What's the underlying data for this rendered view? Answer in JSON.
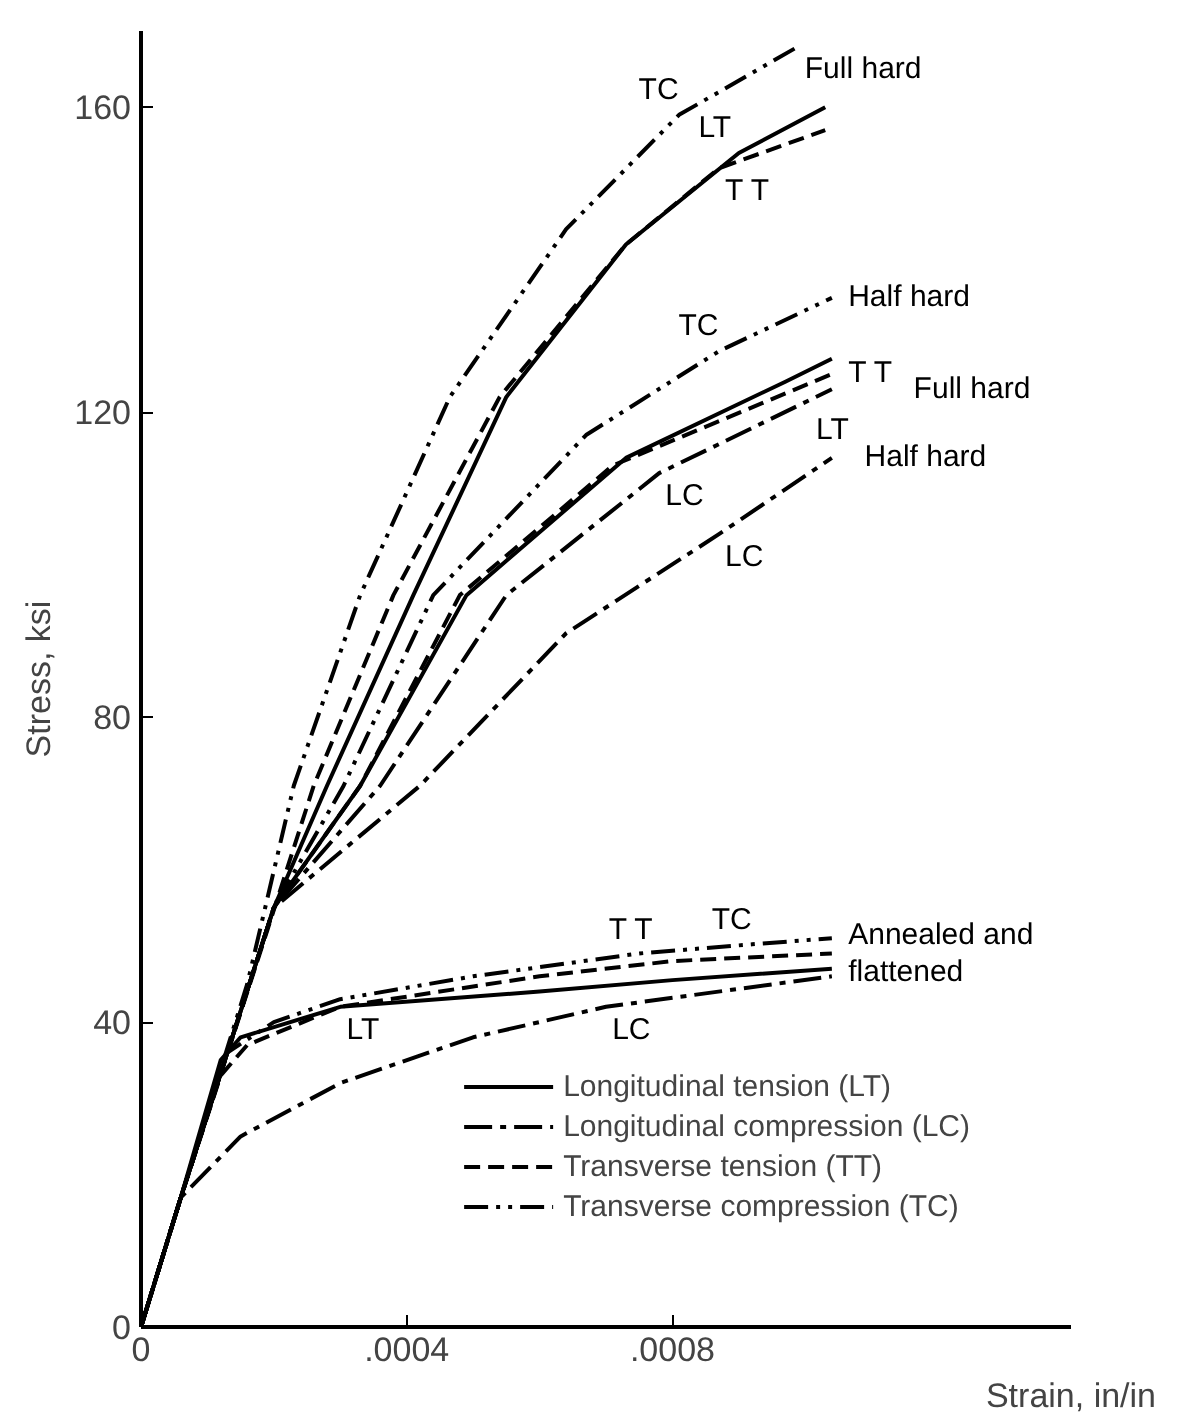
{
  "chart_data": {
    "type": "line",
    "xlabel": "Strain, in/in",
    "ylabel": "Stress, ksi",
    "xlim": [
      0,
      0.0014
    ],
    "ylim": [
      0,
      170
    ],
    "xticks": [
      0,
      {
        "value": 0.0004,
        "label": ".0004"
      },
      {
        "value": 0.0008,
        "label": ".0008"
      }
    ],
    "yticks": [
      0,
      40,
      80,
      120,
      160
    ],
    "grid": false,
    "legend": "bottom right",
    "series": [
      {
        "name": "Longitudinal tension (LT)",
        "line_style": "solid",
        "color": "#000000",
        "x": [
          0,
          6e-05,
          0.0002,
          0.00028,
          0.00041,
          0.00055,
          0.00073,
          0.0009,
          0.00103
        ],
        "values": [
          0,
          17,
          55,
          71,
          96,
          122,
          142,
          154,
          160
        ]
      },
      {
        "name": "Longitudinal compression (LC)",
        "line_style": "dashdot",
        "color": "#000000",
        "x": [
          0,
          6e-05,
          0.0002,
          0.00036,
          0.00055,
          0.00078,
          0.00104
        ],
        "values": [
          0,
          17,
          55,
          71,
          96,
          112,
          123
        ]
      },
      {
        "name": "Transverse tension (TT)",
        "line_style": "dashed",
        "color": "#000000",
        "x": [
          0,
          6e-05,
          0.00019,
          0.00026,
          0.00038,
          0.00054,
          0.00073,
          0.00087,
          0.00103
        ],
        "values": [
          0,
          17,
          52,
          71,
          96,
          122,
          142,
          152,
          157
        ]
      },
      {
        "name": "Transverse compression (TC)",
        "line_style": "dashdotdot",
        "color": "#000000",
        "x": [
          0,
          6e-05,
          0.00016,
          0.00023,
          0.00033,
          0.000465,
          0.00064,
          0.00081,
          0.00099
        ],
        "values": [
          0,
          17,
          45,
          71,
          96,
          122,
          144,
          159,
          168
        ]
      },
      {
        "line_style": "solid",
        "color": "#000000",
        "x": [
          0,
          6e-05,
          0.0002,
          0.00033,
          0.00049,
          0.00073,
          0.00097,
          0.00104
        ],
        "values": [
          0,
          17,
          55,
          71,
          96,
          114,
          124,
          127
        ]
      },
      {
        "line_style": "dashdot",
        "color": "#000000",
        "x": [
          0,
          6e-05,
          0.0002,
          0.00042,
          0.00064,
          0.00087,
          0.00104
        ],
        "values": [
          0,
          17,
          55,
          71,
          91,
          104,
          114
        ]
      },
      {
        "line_style": "dashed",
        "color": "#000000",
        "x": [
          0,
          6e-05,
          0.0002,
          0.00033,
          0.00048,
          0.00071,
          0.00104
        ],
        "values": [
          0,
          17,
          55,
          71,
          96,
          113,
          125
        ]
      },
      {
        "line_style": "dashdotdot",
        "color": "#000000",
        "x": [
          0,
          6e-05,
          0.0002,
          0.000305,
          0.00044,
          0.00067,
          0.00087,
          0.00104
        ],
        "values": [
          0,
          17,
          55,
          71,
          96,
          117,
          128,
          135
        ]
      },
      {
        "line_style": "solid",
        "color": "#000000",
        "x": [
          0,
          6e-05,
          0.00012,
          0.00015,
          0.0003,
          0.0006,
          0.0008,
          0.00104
        ],
        "values": [
          0,
          17,
          35,
          38,
          42,
          44,
          45.5,
          47
        ]
      },
      {
        "line_style": "dashdot",
        "color": "#000000",
        "x": [
          0,
          6e-05,
          0.00015,
          0.0003,
          0.0005,
          0.0007,
          0.00104
        ],
        "values": [
          0,
          17,
          25,
          32,
          38,
          42,
          46
        ]
      },
      {
        "line_style": "dashed",
        "color": "#000000",
        "x": [
          0,
          6e-05,
          0.00012,
          0.00016,
          0.0003,
          0.0006,
          0.0008,
          0.00104
        ],
        "values": [
          0,
          17,
          33,
          37,
          42,
          46,
          48,
          49
        ]
      },
      {
        "line_style": "dashdotdot",
        "color": "#000000",
        "x": [
          0,
          6e-05,
          0.00013,
          0.0002,
          0.0003,
          0.0005,
          0.00075,
          0.00092,
          0.00104
        ],
        "values": [
          0,
          17,
          36,
          40,
          43,
          46,
          49,
          50.2,
          51
        ]
      }
    ],
    "annotations": [
      {
        "text": "TC",
        "x": 0.00081,
        "y": 159
      },
      {
        "text": "LT",
        "x": 0.0009,
        "y": 154
      },
      {
        "text": "T T",
        "x": 0.00087,
        "y": 152
      },
      {
        "text": "Full hard",
        "x": 0.00099,
        "y": 168
      },
      {
        "text": "TC",
        "x": 0.00087,
        "y": 128
      },
      {
        "text": "LT",
        "x": 0.00097,
        "y": 124
      },
      {
        "text": "T T",
        "x": 0.00104,
        "y": 125
      },
      {
        "text": "LC",
        "x": 0.00078,
        "y": 112
      },
      {
        "text": "Half hard",
        "x": 0.00104,
        "y": 135
      },
      {
        "text": "Full hard",
        "x": 0.00104,
        "y": 123
      },
      {
        "text": "Half hard",
        "x": 0.00104,
        "y": 114
      },
      {
        "text": "LC",
        "x": 0.00087,
        "y": 104
      },
      {
        "text": "T T",
        "x": 0.0008,
        "y": 48
      },
      {
        "text": "TC",
        "x": 0.00092,
        "y": 50.2
      },
      {
        "text": "LT",
        "x": 0.0003,
        "y": 42
      },
      {
        "text": "LC",
        "x": 0.0007,
        "y": 42
      },
      {
        "text": "Annealed and\nflattened",
        "x": 0.00104,
        "y": 49
      }
    ]
  }
}
